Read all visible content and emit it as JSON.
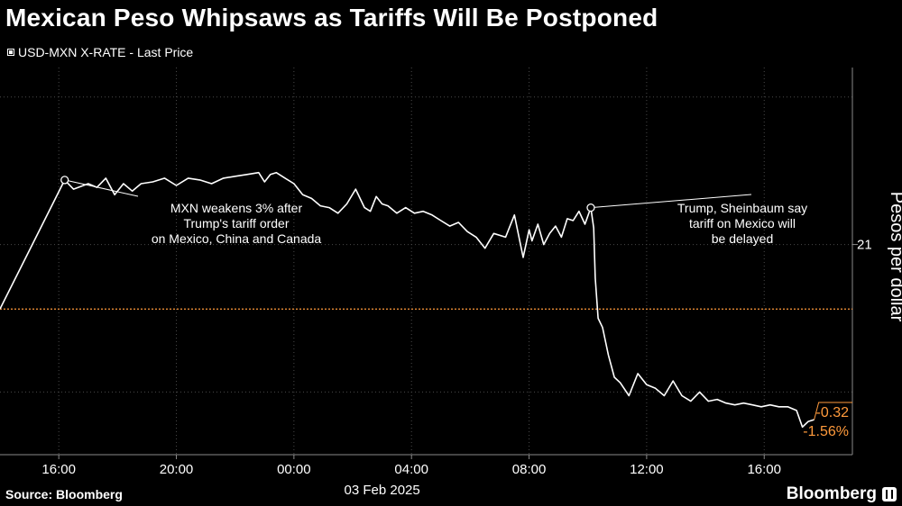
{
  "title": "Mexican Peso Whipsaws as Tariffs Will Be Postponed",
  "legend_label": "USD-MXN X-RATE - Last Price",
  "source": "Source: Bloomberg",
  "brand": "Bloomberg",
  "colors": {
    "line": "#ffffff",
    "reference": "#ff9a3c",
    "grid": "#4a4a4a",
    "background": "#000000"
  },
  "chart_data": {
    "type": "line",
    "series": [
      {
        "name": "USD-MXN X-RATE - Last Price",
        "x": [
          14.0,
          16.2,
          16.5,
          17.0,
          17.3,
          17.6,
          17.9,
          18.2,
          18.5,
          18.8,
          19.2,
          19.6,
          20.0,
          20.4,
          20.8,
          21.2,
          21.6,
          22.0,
          22.4,
          22.8,
          23.0,
          23.2,
          23.4,
          23.7,
          24.0,
          24.3,
          24.6,
          24.9,
          25.2,
          25.5,
          25.8,
          26.1,
          26.4,
          26.6,
          26.8,
          27.0,
          27.2,
          27.5,
          27.8,
          28.1,
          28.4,
          28.7,
          29.0,
          29.3,
          29.6,
          29.9,
          30.2,
          30.5,
          30.8,
          31.2,
          31.5,
          31.8,
          32.0,
          32.1,
          32.3,
          32.5,
          32.7,
          32.9,
          33.1,
          33.3,
          33.5,
          33.7,
          33.9,
          34.1,
          34.2,
          34.25,
          34.35,
          34.5,
          34.7,
          34.9,
          35.1,
          35.4,
          35.7,
          36.0,
          36.3,
          36.6,
          36.9,
          37.2,
          37.5,
          37.8,
          38.1,
          38.4,
          38.7,
          39.0,
          39.3,
          39.6,
          39.9,
          40.2,
          40.5,
          40.8,
          41.1,
          41.3,
          41.5,
          41.7
        ],
        "values": [
          20.65,
          21.35,
          21.3,
          21.33,
          21.31,
          21.36,
          21.27,
          21.33,
          21.29,
          21.33,
          21.34,
          21.36,
          21.32,
          21.36,
          21.35,
          21.33,
          21.36,
          21.37,
          21.38,
          21.39,
          21.34,
          21.38,
          21.39,
          21.36,
          21.33,
          21.27,
          21.25,
          21.21,
          21.2,
          21.17,
          21.22,
          21.3,
          21.2,
          21.18,
          21.26,
          21.22,
          21.21,
          21.17,
          21.2,
          21.17,
          21.18,
          21.16,
          21.13,
          21.1,
          21.12,
          21.07,
          21.04,
          20.98,
          21.06,
          21.04,
          21.16,
          20.93,
          21.08,
          21.02,
          21.11,
          21.0,
          21.06,
          21.1,
          21.04,
          21.14,
          21.13,
          21.18,
          21.11,
          21.2,
          21.09,
          20.82,
          20.6,
          20.55,
          20.4,
          20.28,
          20.25,
          20.18,
          20.3,
          20.24,
          20.22,
          20.18,
          20.26,
          20.18,
          20.15,
          20.2,
          20.15,
          20.16,
          20.14,
          20.13,
          20.14,
          20.13,
          20.12,
          20.13,
          20.12,
          20.12,
          20.1,
          20.01,
          20.04,
          20.05
        ]
      }
    ],
    "reference_line": 20.65,
    "x_ticks": [
      {
        "x": 16,
        "label": "16:00"
      },
      {
        "x": 20,
        "label": "20:00"
      },
      {
        "x": 24,
        "label": "00:00"
      },
      {
        "x": 28,
        "label": "04:00"
      },
      {
        "x": 32,
        "label": "08:00"
      },
      {
        "x": 36,
        "label": "12:00"
      },
      {
        "x": 40,
        "label": "16:00"
      }
    ],
    "x_date_label": "03 Feb 2025",
    "xlim": [
      14.0,
      43.0
    ],
    "ylabel": "Pesos per dollar",
    "y_ticks": [
      {
        "y": 21,
        "label": "21"
      }
    ],
    "y_gridlines": [
      21.8,
      21.0,
      20.2
    ],
    "ylim": [
      19.86,
      21.96
    ],
    "annotations": [
      {
        "point_x": 16.2,
        "point_y": 21.35,
        "text": [
          "MXN weakens 3% after",
          "Trump's tariff order",
          "on Mexico, China and Canada"
        ]
      },
      {
        "point_x": 34.1,
        "point_y": 21.2,
        "text": [
          "Trump, Sheinbaum say",
          "tariff on Mexico will",
          "be delayed"
        ]
      }
    ],
    "last_value_labels": [
      "-0.32",
      "-1.56%"
    ]
  }
}
